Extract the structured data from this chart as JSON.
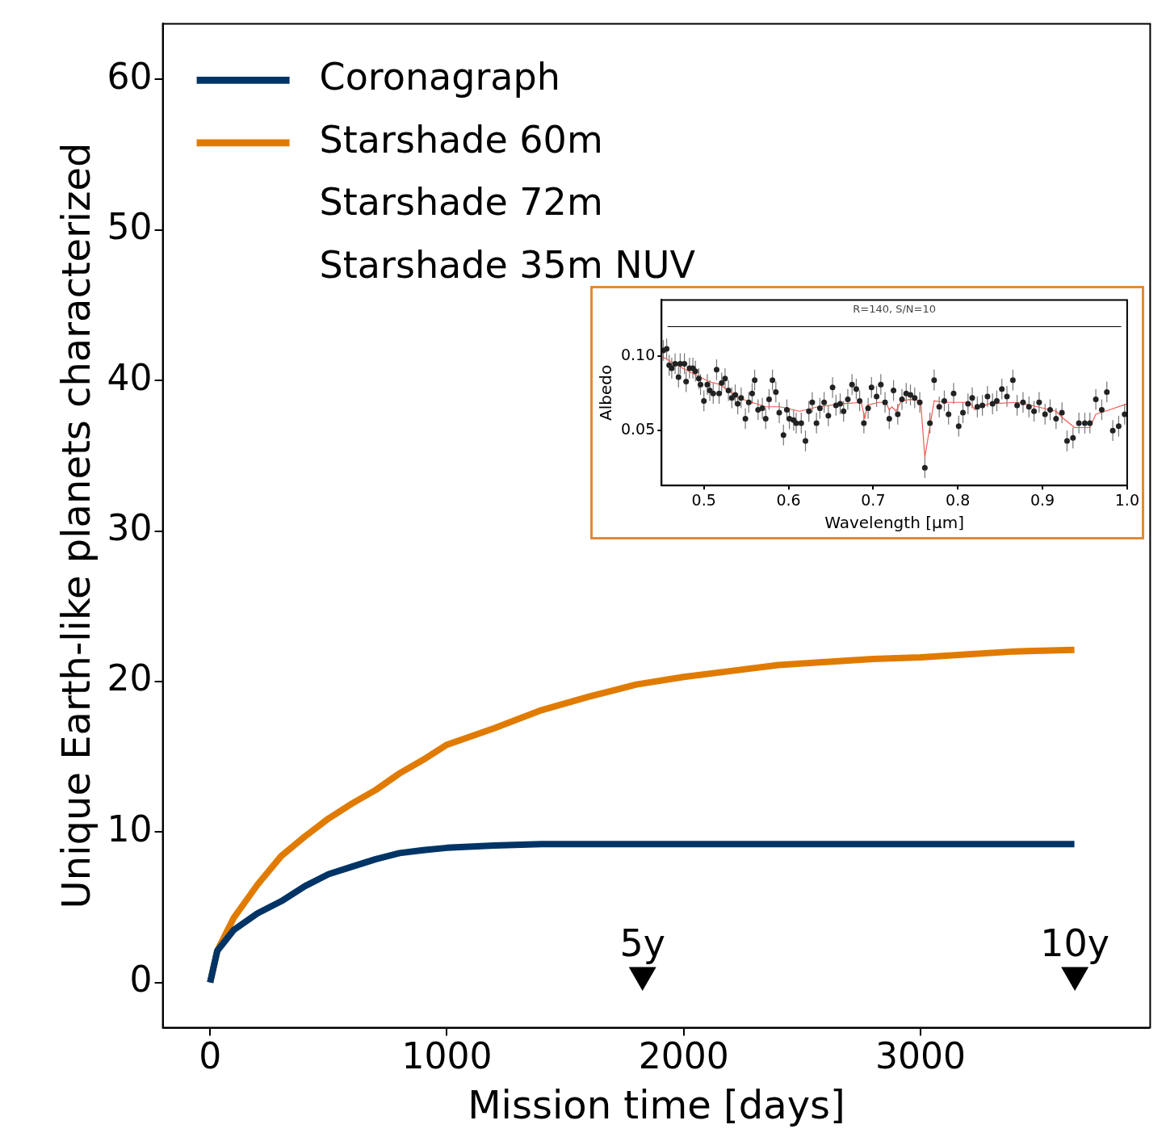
{
  "chart_data": [
    {
      "type": "line",
      "xlabel": "Mission time [days]",
      "ylabel": "Unique Earth-like planets characterized",
      "xlim": [
        -200,
        3970
      ],
      "xticks": [
        0,
        1000,
        2000,
        3000
      ],
      "ylim": [
        -3,
        63.7
      ],
      "yticks": [
        0,
        10,
        20,
        30,
        40,
        50,
        60
      ],
      "grid": false,
      "legend": "top left",
      "series": [
        {
          "name": "Coronagraph",
          "color": "#003466",
          "line_style": "solid",
          "marker": "none",
          "x": [
            0,
            30,
            100,
            200,
            300,
            400,
            500,
            600,
            700,
            800,
            900,
            1000,
            1200,
            1400,
            3650
          ],
          "values": [
            0,
            2.1,
            3.5,
            4.6,
            5.4,
            6.4,
            7.2,
            7.7,
            8.2,
            8.6,
            8.8,
            8.95,
            9.1,
            9.2,
            9.2
          ]
        },
        {
          "name": "Starshade 60m",
          "color": "#e07b00",
          "line_style": "solid",
          "marker": "none",
          "x": [
            0,
            30,
            100,
            200,
            300,
            400,
            500,
            600,
            700,
            800,
            900,
            1000,
            1200,
            1400,
            1600,
            1800,
            2000,
            2200,
            2400,
            2600,
            2800,
            3000,
            3200,
            3400,
            3650
          ],
          "values": [
            0,
            2.1,
            4.3,
            6.5,
            8.4,
            9.7,
            10.9,
            11.9,
            12.8,
            13.9,
            14.8,
            15.8,
            16.9,
            18.1,
            19.0,
            19.8,
            20.3,
            20.7,
            21.1,
            21.3,
            21.5,
            21.6,
            21.8,
            22.0,
            22.1
          ]
        },
        {
          "type": "scatter",
          "color": "#000000",
          "marker": "triangle",
          "x": [
            1826,
            3652
          ],
          "values": [
            0.5,
            0.5
          ]
        }
      ],
      "annotations": [
        "Starshade 72m",
        "Starshade 35m NUV",
        {
          "text": "5y",
          "x": 1826,
          "y": 0.5
        },
        {
          "text": "10y",
          "x": 3652,
          "y": 0.5
        }
      ]
    },
    {
      "type": "scatter",
      "xlabel": "Wavelength [μm]",
      "ylabel": "Albedo",
      "xlim": [
        0.45,
        1.0
      ],
      "xticks": [
        {
          "value": 0.5,
          "label": "0.5"
        },
        {
          "value": 0.6,
          "label": "0.6"
        },
        {
          "value": 0.7,
          "label": "0.7"
        },
        {
          "value": 0.8,
          "label": "0.8"
        },
        {
          "value": 0.9,
          "label": "0.9"
        },
        {
          "value": 1.0,
          "label": "1.0"
        }
      ],
      "ylim": [
        0.013,
        0.138
      ],
      "yticks": [
        {
          "value": 0.05,
          "label": "0.05"
        },
        {
          "value": 0.1,
          "label": "0.10"
        }
      ],
      "grid": false,
      "legend": false,
      "series": [
        {
          "color": "#222222",
          "marker": "circle",
          "x": [
            0.452,
            0.456,
            0.459,
            0.462,
            0.466,
            0.47,
            0.472,
            0.477,
            0.479,
            0.483,
            0.487,
            0.49,
            0.494,
            0.496,
            0.5,
            0.504,
            0.507,
            0.511,
            0.515,
            0.518,
            0.521,
            0.525,
            0.529,
            0.533,
            0.537,
            0.54,
            0.544,
            0.549,
            0.553,
            0.557,
            0.56,
            0.564,
            0.569,
            0.573,
            0.577,
            0.581,
            0.585,
            0.589,
            0.594,
            0.598,
            0.601,
            0.606,
            0.609,
            0.615,
            0.62,
            0.624,
            0.628,
            0.633,
            0.637,
            0.642,
            0.647,
            0.652,
            0.656,
            0.661,
            0.665,
            0.67,
            0.675,
            0.68,
            0.684,
            0.689,
            0.694,
            0.698,
            0.704,
            0.709,
            0.714,
            0.719,
            0.724,
            0.729,
            0.734,
            0.739,
            0.744,
            0.749,
            0.755,
            0.761,
            0.767,
            0.772,
            0.778,
            0.784,
            0.789,
            0.795,
            0.801,
            0.806,
            0.812,
            0.817,
            0.823,
            0.829,
            0.835,
            0.841,
            0.846,
            0.852,
            0.858,
            0.865,
            0.87,
            0.877,
            0.884,
            0.89,
            0.896,
            0.903,
            0.909,
            0.916,
            0.923,
            0.929,
            0.936,
            0.943,
            0.95,
            0.956,
            0.963,
            0.97,
            0.976,
            0.983,
            0.99,
            0.997
          ],
          "values": [
            0.104,
            0.105,
            0.094,
            0.092,
            0.095,
            0.086,
            0.095,
            0.095,
            0.083,
            0.092,
            0.092,
            0.09,
            0.085,
            0.081,
            0.07,
            0.081,
            0.077,
            0.075,
            0.091,
            0.075,
            0.082,
            0.085,
            0.077,
            0.072,
            0.074,
            0.068,
            0.072,
            0.058,
            0.069,
            0.075,
            0.084,
            0.064,
            0.065,
            0.058,
            0.071,
            0.084,
            0.076,
            0.062,
            0.047,
            0.064,
            0.058,
            0.057,
            0.055,
            0.055,
            0.043,
            0.063,
            0.069,
            0.055,
            0.065,
            0.069,
            0.06,
            0.079,
            0.067,
            0.068,
            0.063,
            0.071,
            0.081,
            0.078,
            0.07,
            0.055,
            0.065,
            0.079,
            0.073,
            0.081,
            0.069,
            0.058,
            0.077,
            0.061,
            0.071,
            0.075,
            0.074,
            0.072,
            0.069,
            0.025,
            0.055,
            0.084,
            0.066,
            0.07,
            0.061,
            0.075,
            0.053,
            0.062,
            0.068,
            0.072,
            0.066,
            0.067,
            0.073,
            0.068,
            0.07,
            0.078,
            0.073,
            0.084,
            0.067,
            0.069,
            0.066,
            0.063,
            0.069,
            0.061,
            0.064,
            0.058,
            0.062,
            0.043,
            0.045,
            0.055,
            0.055,
            0.055,
            0.071,
            0.064,
            0.076,
            0.05,
            0.053,
            0.061
          ],
          "errors": [
            0.007,
            0.007,
            0.007,
            0.007,
            0.007,
            0.007,
            0.007,
            0.007,
            0.007,
            0.007,
            0.007,
            0.007,
            0.007,
            0.007,
            0.007,
            0.007,
            0.007,
            0.007,
            0.007,
            0.007,
            0.007,
            0.007,
            0.007,
            0.007,
            0.007,
            0.007,
            0.007,
            0.007,
            0.007,
            0.007,
            0.007,
            0.007,
            0.007,
            0.007,
            0.007,
            0.007,
            0.007,
            0.007,
            0.007,
            0.007,
            0.007,
            0.007,
            0.007,
            0.007,
            0.007,
            0.007,
            0.007,
            0.007,
            0.007,
            0.007,
            0.007,
            0.007,
            0.007,
            0.007,
            0.007,
            0.007,
            0.007,
            0.007,
            0.007,
            0.007,
            0.007,
            0.007,
            0.007,
            0.007,
            0.007,
            0.007,
            0.007,
            0.007,
            0.007,
            0.007,
            0.007,
            0.007,
            0.007,
            0.007,
            0.007,
            0.007,
            0.007,
            0.007,
            0.007,
            0.007,
            0.007,
            0.007,
            0.007,
            0.007,
            0.007,
            0.007,
            0.007,
            0.007,
            0.007,
            0.007,
            0.007,
            0.007,
            0.007,
            0.007,
            0.007,
            0.007,
            0.007,
            0.007,
            0.007,
            0.007,
            0.007,
            0.007,
            0.007,
            0.007,
            0.007,
            0.007,
            0.007,
            0.007,
            0.007,
            0.007,
            0.007,
            0.007
          ]
        },
        {
          "type": "line",
          "color": "#f05a50",
          "line_style": "solid",
          "marker": "none",
          "x": [
            0.45,
            0.475,
            0.506,
            0.519,
            0.541,
            0.573,
            0.59,
            0.613,
            0.635,
            0.662,
            0.686,
            0.69,
            0.693,
            0.706,
            0.715,
            0.719,
            0.722,
            0.727,
            0.733,
            0.744,
            0.756,
            0.761,
            0.772,
            0.787,
            0.814,
            0.82,
            0.836,
            0.871,
            0.894,
            0.916,
            0.925,
            0.938,
            0.956,
            0.963,
            0.974,
            1.0
          ],
          "values": [
            0.1,
            0.092,
            0.083,
            0.081,
            0.072,
            0.066,
            0.066,
            0.063,
            0.066,
            0.068,
            0.069,
            0.058,
            0.067,
            0.069,
            0.069,
            0.064,
            0.066,
            0.063,
            0.07,
            0.071,
            0.07,
            0.032,
            0.07,
            0.069,
            0.069,
            0.064,
            0.068,
            0.069,
            0.066,
            0.063,
            0.058,
            0.052,
            0.052,
            0.061,
            0.063,
            0.068
          ]
        },
        {
          "type": "line",
          "color": "#000000",
          "line_style": "solid",
          "marker": "none",
          "x": [
            0.457,
            0.993
          ],
          "values": [
            0.12,
            0.12
          ]
        }
      ],
      "annotations": [
        "R=140, S/N=10"
      ]
    }
  ]
}
